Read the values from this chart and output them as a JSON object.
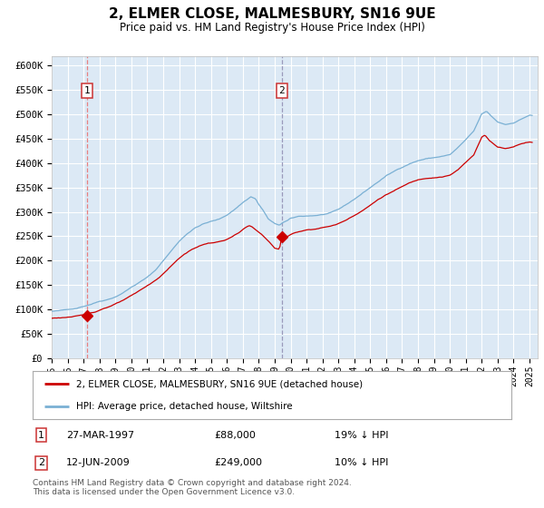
{
  "title": "2, ELMER CLOSE, MALMESBURY, SN16 9UE",
  "subtitle": "Price paid vs. HM Land Registry's House Price Index (HPI)",
  "legend_line1": "2, ELMER CLOSE, MALMESBURY, SN16 9UE (detached house)",
  "legend_line2": "HPI: Average price, detached house, Wiltshire",
  "footnote_line1": "Contains HM Land Registry data © Crown copyright and database right 2024.",
  "footnote_line2": "This data is licensed under the Open Government Licence v3.0.",
  "transaction1_date": "27-MAR-1997",
  "transaction1_price": 88000,
  "transaction1_price_str": "£88,000",
  "transaction1_label": "19% ↓ HPI",
  "transaction2_date": "12-JUN-2009",
  "transaction2_price": 249000,
  "transaction2_price_str": "£249,000",
  "transaction2_label": "10% ↓ HPI",
  "sale1_year": 1997.23,
  "sale2_year": 2009.45,
  "background_color": "#dce9f5",
  "red_line_color": "#cc0000",
  "blue_line_color": "#7ab0d4",
  "grid_color": "#ffffff",
  "vline1_color": "#e88080",
  "vline2_color": "#9999bb",
  "yticks": [
    0,
    50000,
    100000,
    150000,
    200000,
    250000,
    300000,
    350000,
    400000,
    450000,
    500000,
    550000,
    600000
  ],
  "xmin": 1995.0,
  "xmax": 2025.5,
  "ymin": 0,
  "ymax": 620000
}
